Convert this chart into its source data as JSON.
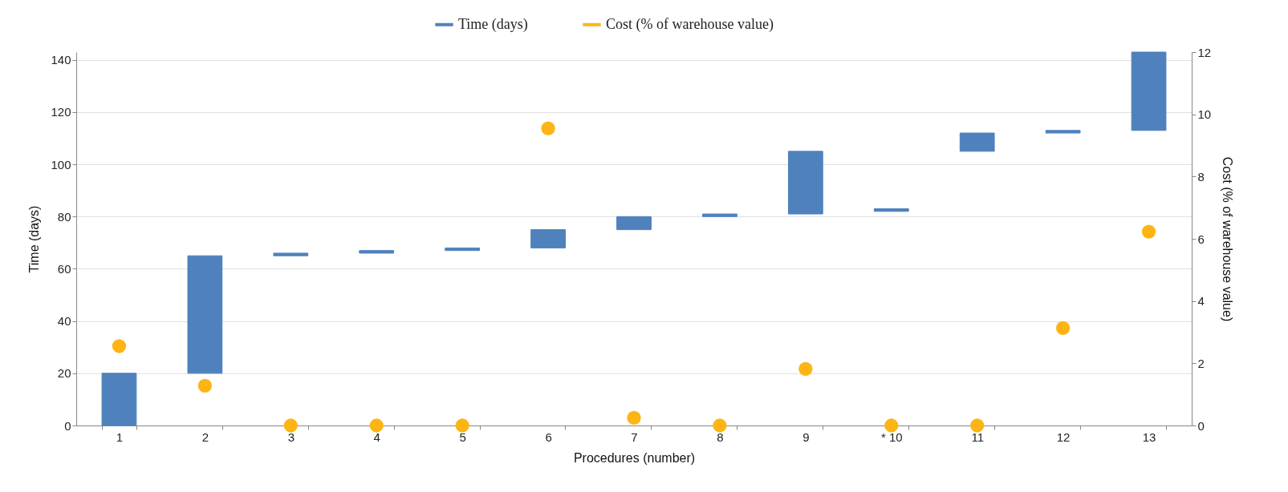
{
  "chart_data": {
    "type": "bar",
    "xlabel": "Procedures (number)",
    "ylabel": "Time (days)",
    "y2label": "Cost (% of warehouse value)",
    "categories": [
      "1",
      "2",
      "3",
      "4",
      "5",
      "6",
      "7",
      "8",
      "9",
      "* 10",
      "11",
      "12",
      "13"
    ],
    "series": [
      {
        "name": "Time (days)",
        "color": "#4f81bd",
        "base": [
          0,
          20,
          65,
          66,
          67,
          68,
          75,
          80,
          81,
          82,
          105,
          112,
          113
        ],
        "values": [
          20,
          45,
          1,
          1,
          1,
          7,
          5,
          1,
          24,
          1,
          7,
          1,
          30
        ]
      },
      {
        "name": "Cost (% of warehouse value)",
        "type": "scatter",
        "axis": "y2",
        "color": "#fdb515",
        "values": [
          2.55,
          1.28,
          0,
          0,
          0,
          9.55,
          0.25,
          0,
          1.82,
          0,
          0,
          3.13,
          6.23
        ]
      }
    ],
    "ylim": [
      0,
      143
    ],
    "yticks": [
      0,
      20,
      40,
      60,
      80,
      100,
      120,
      140
    ],
    "y2lim": [
      0,
      12
    ],
    "y2ticks": [
      0,
      2,
      4,
      6,
      8,
      10,
      12
    ],
    "grid": "y",
    "legend": "top",
    "marker": "circle"
  }
}
